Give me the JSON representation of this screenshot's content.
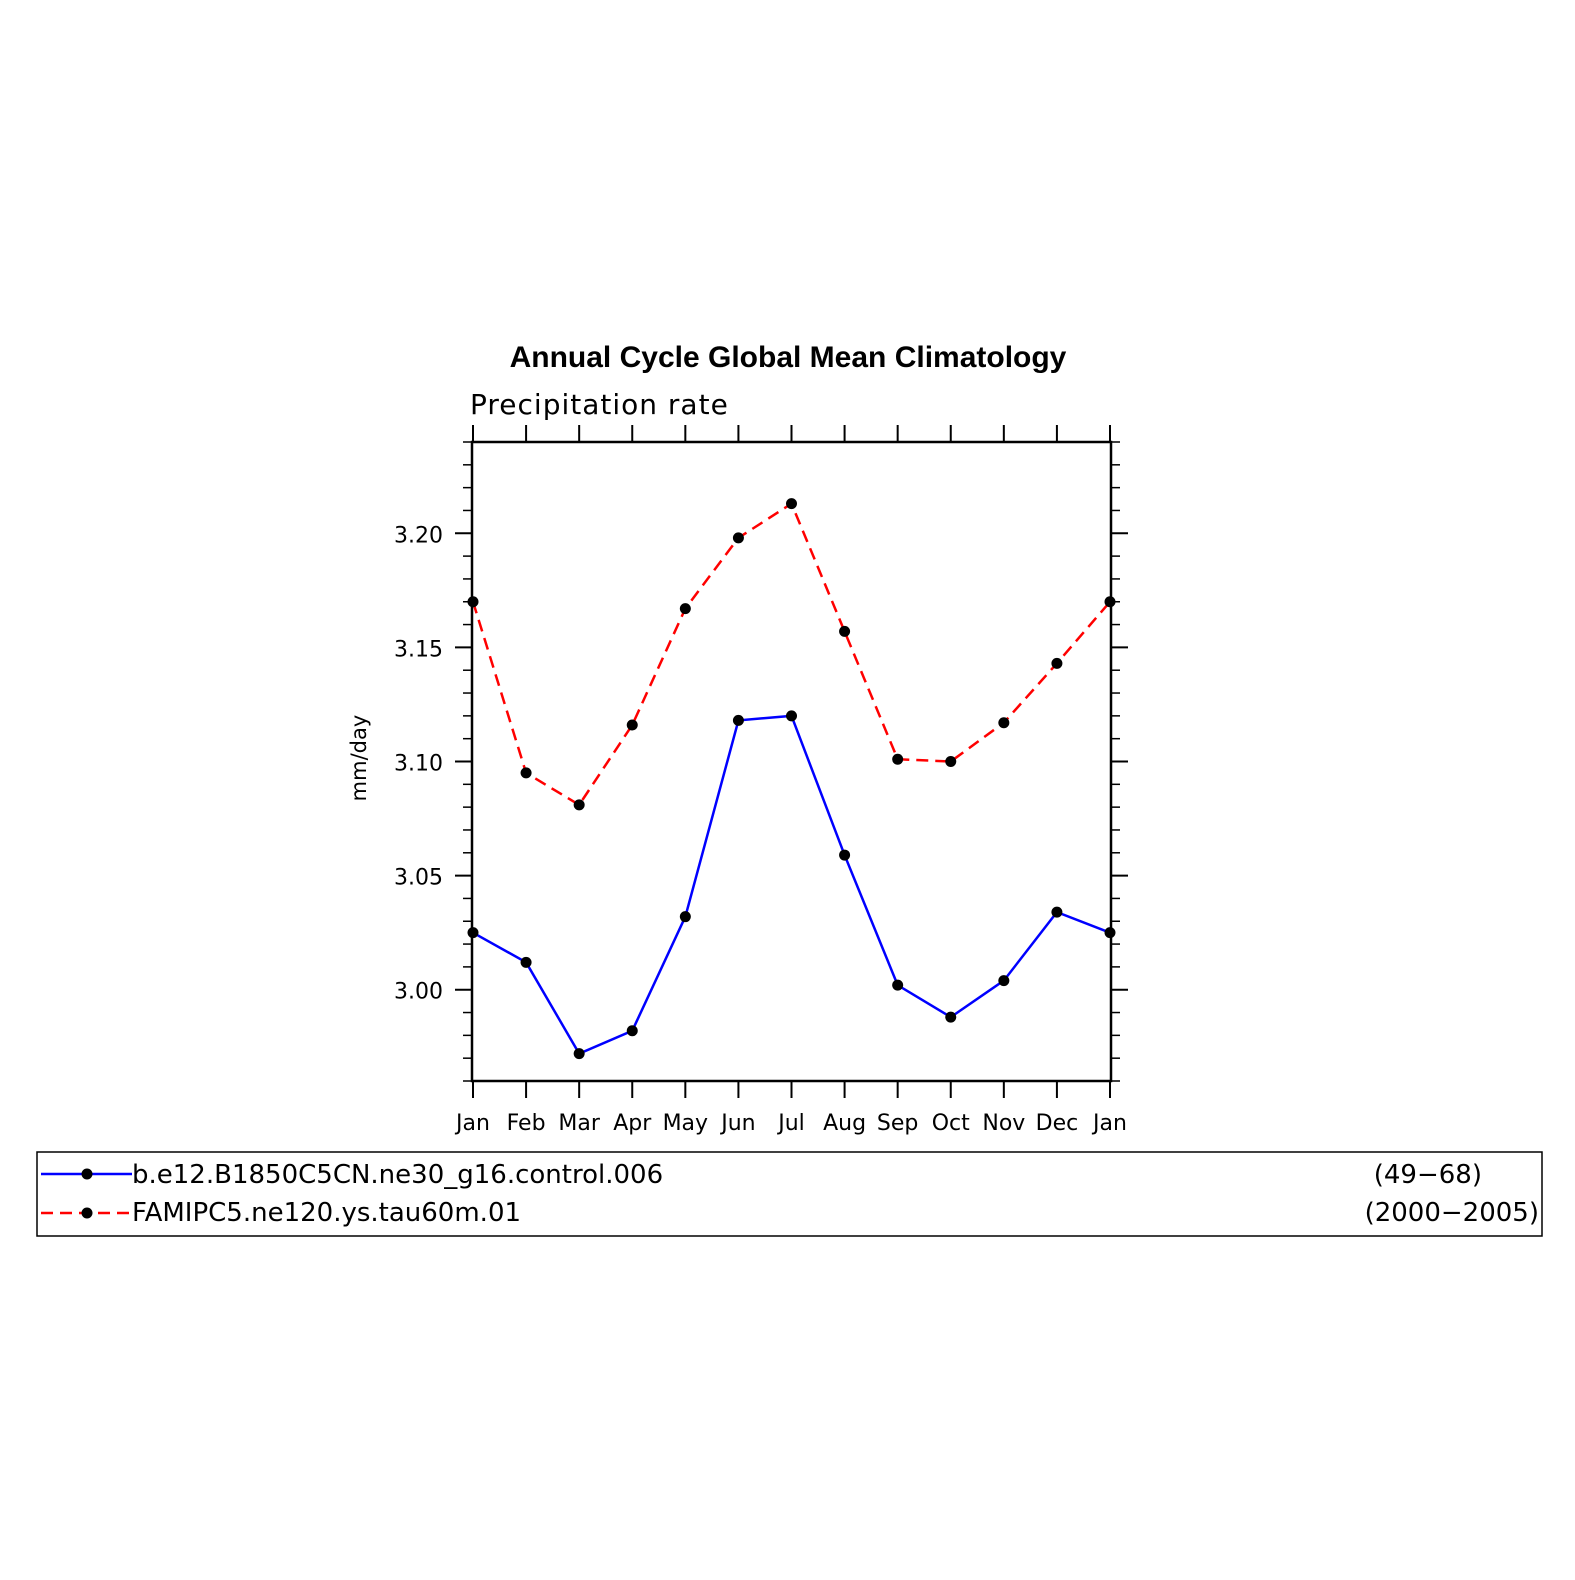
{
  "chart_data": {
    "type": "line",
    "title": "Annual Cycle Global Mean Climatology",
    "subtitle": "Precipitation rate",
    "xlabel": "",
    "ylabel": "mm/day",
    "categories": [
      "Jan",
      "Feb",
      "Mar",
      "Apr",
      "May",
      "Jun",
      "Jul",
      "Aug",
      "Sep",
      "Oct",
      "Nov",
      "Dec",
      "Jan"
    ],
    "yticks": [
      "3.00",
      "3.05",
      "3.10",
      "3.15",
      "3.20"
    ],
    "ylim": [
      2.96,
      3.24
    ],
    "grid": false,
    "legend_position": "bottom",
    "series": [
      {
        "name": "b.e12.B1850C5CN.ne30_g16.control.006",
        "years": "(49−68)",
        "color": "#0000ff",
        "line_style": "solid",
        "marker": "filled-circle",
        "values": [
          3.025,
          3.012,
          2.972,
          2.982,
          3.032,
          3.118,
          3.12,
          3.059,
          3.002,
          2.988,
          3.004,
          3.034,
          3.025
        ]
      },
      {
        "name": "FAMIPC5.ne120.ys.tau60m.01",
        "years": "(2000−2005)",
        "color": "#ff0000",
        "line_style": "dashed",
        "marker": "filled-circle",
        "values": [
          3.17,
          3.095,
          3.081,
          3.116,
          3.167,
          3.198,
          3.213,
          3.157,
          3.101,
          3.1,
          3.117,
          3.143,
          3.17
        ]
      }
    ]
  }
}
